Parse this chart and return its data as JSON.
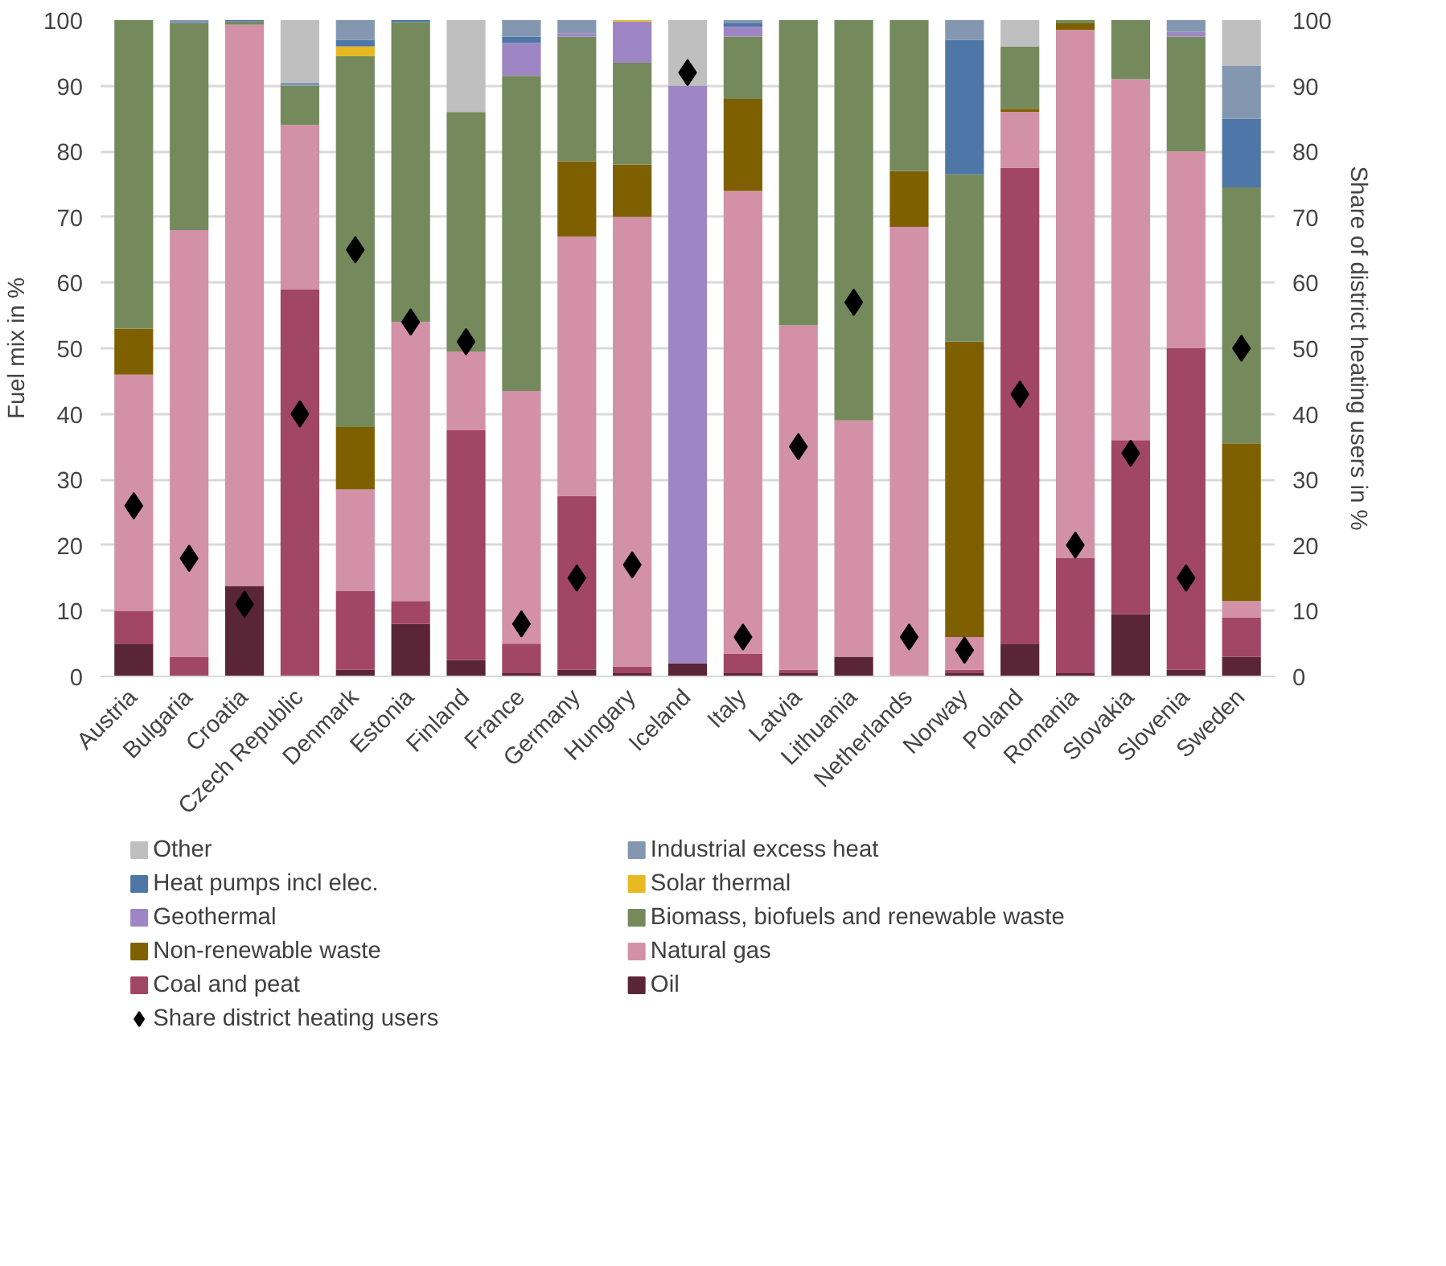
{
  "chart_data": {
    "type": "bar",
    "stacked": true,
    "ylabel": "Fuel mix in %",
    "y2label": "Share of district heating users in %",
    "categories": [
      "Austria",
      "Bulgaria",
      "Croatia",
      "Czech Republic",
      "Denmark",
      "Estonia",
      "Finland",
      "France",
      "Germany",
      "Hungary",
      "Iceland",
      "Italy",
      "Latvia",
      "Lithuania",
      "Netherlands",
      "Norway",
      "Poland",
      "Romania",
      "Slovakia",
      "Slovenia",
      "Sweden"
    ],
    "ylim": [
      0,
      100
    ],
    "yticks": [
      0,
      10,
      20,
      30,
      40,
      50,
      60,
      70,
      80,
      90,
      100
    ],
    "y2lim": [
      0,
      100
    ],
    "y2ticks": [
      0,
      10,
      20,
      30,
      40,
      50,
      60,
      70,
      80,
      90,
      100
    ],
    "grid": "y",
    "legend": "bottom",
    "series": [
      {
        "name": "Oil",
        "color": "#5a2537",
        "values": [
          5,
          0,
          13.8,
          0,
          1,
          8,
          2.5,
          0.5,
          1,
          0.5,
          2,
          0.5,
          0.5,
          3,
          0,
          0.5,
          5,
          0.5,
          9.5,
          1,
          3
        ]
      },
      {
        "name": "Coal and peat",
        "color": "#a14665",
        "values": [
          5,
          3,
          0,
          59,
          12,
          3.5,
          35,
          4.5,
          26.5,
          1,
          0,
          3,
          0.5,
          0,
          0,
          0.5,
          72.5,
          17.5,
          26.5,
          49,
          6
        ]
      },
      {
        "name": "Natural gas",
        "color": "#d291a6",
        "values": [
          36,
          65,
          85.5,
          25,
          15.5,
          42.5,
          12,
          38.5,
          39.5,
          68.5,
          0,
          70.5,
          52.5,
          36,
          68.5,
          5,
          8.5,
          80.5,
          55,
          30,
          2.5
        ]
      },
      {
        "name": "Non-renewable waste",
        "color": "#7f6000",
        "values": [
          7,
          0,
          0,
          0,
          9.5,
          0,
          0,
          0,
          11.5,
          8,
          0,
          14,
          0,
          0,
          8.5,
          45,
          0.5,
          1,
          0,
          0,
          24
        ]
      },
      {
        "name": "Biomass, biofuels and renewable waste",
        "color": "#748a5c",
        "values": [
          47,
          31.5,
          0.5,
          6,
          56.5,
          45.7,
          36.5,
          48,
          19,
          15.5,
          0,
          9.5,
          46.5,
          61,
          23,
          25.5,
          9.5,
          0.5,
          9,
          17.5,
          39
        ]
      },
      {
        "name": "Geothermal",
        "color": "#9e86c4",
        "values": [
          0,
          0,
          0,
          0,
          0,
          0,
          0,
          5,
          0.5,
          6.3,
          88,
          1.5,
          0,
          0,
          0,
          0,
          0,
          0,
          0,
          0.7,
          0
        ]
      },
      {
        "name": "Solar thermal",
        "color": "#e8b923",
        "values": [
          0,
          0,
          0,
          0,
          1.5,
          0,
          0,
          0,
          0,
          0.2,
          0,
          0,
          0,
          0,
          0,
          0,
          0,
          0,
          0,
          0,
          0
        ]
      },
      {
        "name": "Heat pumps incl elec.",
        "color": "#4e76a6",
        "values": [
          0,
          0,
          0.2,
          0,
          1,
          0.3,
          0,
          1,
          0,
          0,
          0,
          0.5,
          0,
          0,
          0,
          20.5,
          0,
          0,
          0,
          0,
          10.5
        ]
      },
      {
        "name": "Industrial excess heat",
        "color": "#8497b0",
        "values": [
          0,
          0.5,
          0,
          0.5,
          3,
          0,
          0,
          2.5,
          2,
          0,
          0,
          0.5,
          0,
          0,
          0,
          3,
          0,
          0,
          0,
          1.8,
          8
        ]
      },
      {
        "name": "Other",
        "color": "#bfbfbf",
        "values": [
          0,
          0,
          0,
          9.5,
          0,
          0,
          14,
          0,
          0,
          0,
          10,
          0,
          0,
          0,
          0,
          0,
          4,
          0,
          0,
          0,
          7
        ]
      },
      {
        "name": "Share district heating users",
        "type": "scatter",
        "axis": "y2",
        "marker": "diamond",
        "color": "#000000",
        "values": [
          26,
          18,
          11,
          40,
          65,
          54,
          51,
          8,
          15,
          17,
          92,
          6,
          35,
          57,
          6,
          4,
          43,
          20,
          34,
          15,
          50
        ]
      }
    ]
  }
}
